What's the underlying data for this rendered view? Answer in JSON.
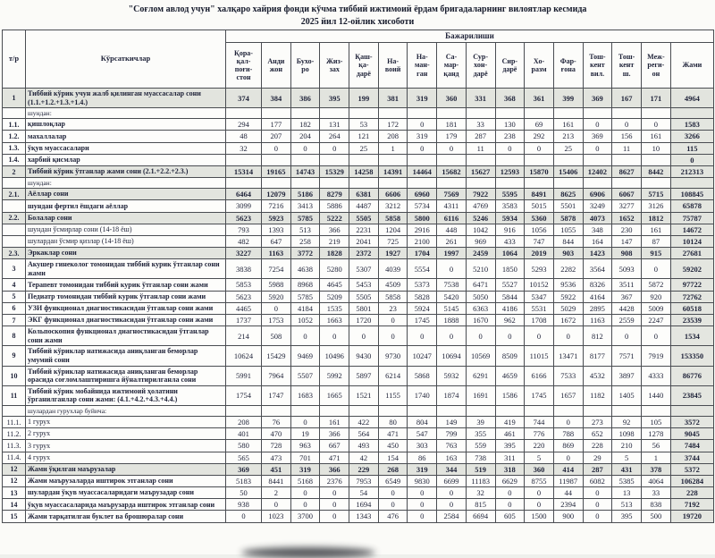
{
  "title": {
    "line1": "\"Соғлом авлод учун\" халқаро хайрия фонди кўчма тиббий ижтимоий ёрдам бригадаларнинг вилоятлар кесмида",
    "line2": "2025 йил 12-ойлик хисоботи"
  },
  "table": {
    "corner": {
      "num": "т/р",
      "indicators": "Кўрсаткичлар",
      "execution": "Бажарилиши"
    },
    "columns": [
      "Қора-\nқал-\nпоғи-\nстон",
      "Анди\nжон",
      "Бухо-\nро",
      "Жиз-\nзах",
      "Қаш-\nқа-\nдарё",
      "На-\nвоий",
      "На-\nман-\nган",
      "Са-\nмар-\nқанд",
      "Сур-\nхон-\nдарё",
      "Сир-\nдарё",
      "Хо-\nразм",
      "Фар-\nғона",
      "Тош-\nкент\nвил.",
      "Тош-\nкент\nш.",
      "Меж-\nреги-\nон",
      "Жами"
    ],
    "rows": [
      {
        "num": "1",
        "label": "Тиббий кўрик учун жалб қилинган муассасалар сони (1.1.+1.2.+1.3.+1.4.)",
        "style": "summary",
        "values": [
          "374",
          "384",
          "386",
          "395",
          "199",
          "381",
          "319",
          "360",
          "331",
          "368",
          "361",
          "399",
          "369",
          "167",
          "171",
          "4964"
        ]
      },
      {
        "num": "",
        "label": "шундан:",
        "style": "subheader",
        "values": [
          "",
          "",
          "",
          "",
          "",
          "",
          "",
          "",
          "",
          "",
          "",
          "",
          "",
          "",
          "",
          ""
        ]
      },
      {
        "num": "1.1.",
        "label": "қишлоқлар",
        "style": "row",
        "values": [
          "294",
          "177",
          "182",
          "131",
          "53",
          "172",
          "0",
          "181",
          "33",
          "130",
          "69",
          "161",
          "0",
          "0",
          "0",
          "1583"
        ]
      },
      {
        "num": "1.2.",
        "label": "махаллалар",
        "style": "row",
        "values": [
          "48",
          "207",
          "204",
          "264",
          "121",
          "208",
          "319",
          "179",
          "287",
          "238",
          "292",
          "213",
          "369",
          "156",
          "161",
          "3266"
        ]
      },
      {
        "num": "1.3.",
        "label": "ўқув муассасалари",
        "style": "row",
        "values": [
          "32",
          "0",
          "0",
          "0",
          "25",
          "1",
          "0",
          "0",
          "11",
          "0",
          "0",
          "25",
          "0",
          "11",
          "10",
          "115"
        ]
      },
      {
        "num": "1.4.",
        "label": "харбий қисмлар",
        "style": "row",
        "values": [
          "",
          "",
          "",
          "",
          "",
          "",
          "",
          "",
          "",
          "",
          "",
          "",
          "",
          "",
          "",
          "0"
        ]
      },
      {
        "num": "2",
        "label": "Тиббий кўрик ўтганлар жами сони  (2.1.+2.2.+2.3.)",
        "style": "summary",
        "values": [
          "15314",
          "19165",
          "14743",
          "15329",
          "14258",
          "14391",
          "14464",
          "15682",
          "15627",
          "12593",
          "15870",
          "15406",
          "12402",
          "8627",
          "8442",
          "212313"
        ]
      },
      {
        "num": "",
        "label": "шундан:",
        "style": "subheader",
        "values": [
          "",
          "",
          "",
          "",
          "",
          "",
          "",
          "",
          "",
          "",
          "",
          "",
          "",
          "",
          "",
          ""
        ]
      },
      {
        "num": "2.1.",
        "label": "Аёллар сони",
        "style": "summary",
        "values": [
          "6464",
          "12079",
          "5186",
          "8279",
          "6381",
          "6606",
          "6960",
          "7569",
          "7922",
          "5595",
          "8491",
          "8625",
          "6906",
          "6067",
          "5715",
          "108845"
        ]
      },
      {
        "num": "",
        "label": "шундан фертил ёшдаги аёллар",
        "style": "row",
        "values": [
          "3099",
          "7216",
          "3413",
          "5886",
          "4487",
          "3212",
          "5734",
          "4311",
          "4769",
          "3583",
          "5015",
          "5501",
          "3249",
          "3277",
          "3126",
          "65878"
        ]
      },
      {
        "num": "2.2.",
        "label": "Болалар сони",
        "style": "summary",
        "values": [
          "5623",
          "5923",
          "5785",
          "5222",
          "5505",
          "5858",
          "5800",
          "6116",
          "5246",
          "5934",
          "5360",
          "5878",
          "4073",
          "1652",
          "1812",
          "75787"
        ]
      },
      {
        "num": "",
        "label": "шундан ўсмирлар сони (14-18 ёш)",
        "style": "light",
        "values": [
          "793",
          "1393",
          "513",
          "366",
          "2231",
          "1204",
          "2916",
          "448",
          "1042",
          "916",
          "1056",
          "1055",
          "348",
          "230",
          "161",
          "14672"
        ]
      },
      {
        "num": "",
        "label": "шулардан ўсмир қизлар (14-18 ёш)",
        "style": "light",
        "values": [
          "482",
          "647",
          "258",
          "219",
          "2041",
          "725",
          "2100",
          "261",
          "969",
          "433",
          "747",
          "844",
          "164",
          "147",
          "87",
          "10124"
        ]
      },
      {
        "num": "2.3.",
        "label": "Эркаклар сони",
        "style": "summary",
        "values": [
          "3227",
          "1163",
          "3772",
          "1828",
          "2372",
          "1927",
          "1704",
          "1997",
          "2459",
          "1064",
          "2019",
          "903",
          "1423",
          "908",
          "915",
          "27681"
        ]
      },
      {
        "num": "3",
        "label": "Акушер гинеколог томонидан тиббий курик ўтганлар сони жами",
        "style": "row",
        "values": [
          "3838",
          "7254",
          "4638",
          "5280",
          "5307",
          "4039",
          "5554",
          "0",
          "5210",
          "1850",
          "5293",
          "2282",
          "3564",
          "5093",
          "0",
          "59202"
        ]
      },
      {
        "num": "4",
        "label": "Терапевт томонидан тиббий курик ўтганлар сони жами",
        "style": "row",
        "values": [
          "5853",
          "5988",
          "8968",
          "4645",
          "5453",
          "4509",
          "5373",
          "7538",
          "6471",
          "5527",
          "10152",
          "9536",
          "8326",
          "3511",
          "5872",
          "97722"
        ]
      },
      {
        "num": "5",
        "label": "Педиатр томонидан тиббий курик ўтганлар сони жами",
        "style": "row",
        "values": [
          "5623",
          "5920",
          "5785",
          "5209",
          "5505",
          "5858",
          "5828",
          "5420",
          "5050",
          "5844",
          "5347",
          "5922",
          "4164",
          "367",
          "920",
          "72762"
        ]
      },
      {
        "num": "6",
        "label": "УЗИ функционал диагностикасидан ўтганлар сони жами",
        "style": "row",
        "values": [
          "4465",
          "0",
          "4184",
          "1535",
          "5801",
          "23",
          "5924",
          "5145",
          "6363",
          "4186",
          "5531",
          "5029",
          "2895",
          "4428",
          "5009",
          "60518"
        ]
      },
      {
        "num": "7",
        "label": "ЭКГ функционал диагностикасидан ўтганлар сони жами",
        "style": "row",
        "values": [
          "1737",
          "1753",
          "1052",
          "1663",
          "1720",
          "0",
          "1745",
          "1888",
          "1670",
          "962",
          "1708",
          "1672",
          "1163",
          "2559",
          "2247",
          "23539"
        ]
      },
      {
        "num": "8",
        "label": "Кольпоскопия функционал диагностикасидан ўтганлар сони жами",
        "style": "row",
        "values": [
          "214",
          "508",
          "0",
          "0",
          "0",
          "0",
          "0",
          "0",
          "0",
          "0",
          "0",
          "0",
          "812",
          "0",
          "0",
          "1534"
        ]
      },
      {
        "num": "9",
        "label": "Тиббий кўриклар натижасида аниқланган беморлар умумий сони",
        "style": "row",
        "values": [
          "10624",
          "15429",
          "9469",
          "10496",
          "9430",
          "9730",
          "10247",
          "10694",
          "10569",
          "8509",
          "11015",
          "13471",
          "8177",
          "7571",
          "7919",
          "153350"
        ]
      },
      {
        "num": "10",
        "label": "Тиббий кўриклар натижасида аниқланган беморлар орасида соғломлаштиришга йўналтирилганла сони",
        "style": "row",
        "values": [
          "5991",
          "7964",
          "5507",
          "5992",
          "5897",
          "6214",
          "5868",
          "5932",
          "6291",
          "4659",
          "6166",
          "7533",
          "4532",
          "3897",
          "4333",
          "86776"
        ]
      },
      {
        "num": "11",
        "label": "Тиббий кўрик мобайнида ижтимоий ҳолатини ўрганилганлар сони жами: (4.1.+4.2.+4.3.+4.4.)",
        "style": "row",
        "values": [
          "1754",
          "1747",
          "1683",
          "1665",
          "1521",
          "1155",
          "1740",
          "1874",
          "1691",
          "1586",
          "1745",
          "1657",
          "1182",
          "1405",
          "1440",
          "23845"
        ]
      },
      {
        "num": "",
        "label": "шулардан гурухлар буйича:",
        "style": "subheader",
        "values": [
          "",
          "",
          "",
          "",
          "",
          "",
          "",
          "",
          "",
          "",
          "",
          "",
          "",
          "",
          "",
          ""
        ]
      },
      {
        "num": "11.1.",
        "label": "1 гурух",
        "style": "light",
        "values": [
          "208",
          "76",
          "0",
          "161",
          "422",
          "80",
          "804",
          "149",
          "39",
          "419",
          "744",
          "0",
          "273",
          "92",
          "105",
          "3572"
        ]
      },
      {
        "num": "11.2.",
        "label": "2 гурух",
        "style": "light",
        "values": [
          "401",
          "470",
          "19",
          "366",
          "564",
          "471",
          "547",
          "799",
          "355",
          "461",
          "776",
          "788",
          "652",
          "1098",
          "1278",
          "9045"
        ]
      },
      {
        "num": "11.3.",
        "label": "3 гурух",
        "style": "light",
        "values": [
          "580",
          "728",
          "963",
          "667",
          "493",
          "450",
          "303",
          "763",
          "559",
          "395",
          "220",
          "869",
          "228",
          "210",
          "56",
          "7484"
        ]
      },
      {
        "num": "11.4.",
        "label": "4 гурух",
        "style": "light",
        "values": [
          "565",
          "473",
          "701",
          "471",
          "42",
          "154",
          "86",
          "163",
          "738",
          "311",
          "5",
          "0",
          "29",
          "5",
          "1",
          "3744"
        ]
      },
      {
        "num": "12",
        "label": "Жами ўқилган маърузалар",
        "style": "summary",
        "values": [
          "369",
          "451",
          "319",
          "366",
          "229",
          "268",
          "319",
          "344",
          "519",
          "318",
          "360",
          "414",
          "287",
          "431",
          "378",
          "5372"
        ]
      },
      {
        "num": "12",
        "label": "Жами маърузаларда иштирок этганлар сони",
        "style": "row",
        "values": [
          "5183",
          "8441",
          "5168",
          "2376",
          "7953",
          "6549",
          "9830",
          "6699",
          "11183",
          "6629",
          "8755",
          "11987",
          "6082",
          "5385",
          "4064",
          "106284"
        ]
      },
      {
        "num": "13",
        "label": "шулардан ўқув муассасаларидаги маърузадар  сони",
        "style": "row",
        "values": [
          "50",
          "2",
          "0",
          "0",
          "54",
          "0",
          "0",
          "0",
          "32",
          "0",
          "0",
          "44",
          "0",
          "13",
          "33",
          "228"
        ]
      },
      {
        "num": "14",
        "label": "ўқув муассасаларида маърузарда иштирок этганлар сони",
        "style": "row",
        "values": [
          "938",
          "0",
          "0",
          "0",
          "1694",
          "0",
          "0",
          "0",
          "815",
          "0",
          "0",
          "2394",
          "0",
          "513",
          "838",
          "7192"
        ]
      },
      {
        "num": "15",
        "label": "Жами тарқатилган буклет ва брошюралар сони",
        "style": "row",
        "values": [
          "0",
          "1023",
          "3700",
          "0",
          "1343",
          "476",
          "0",
          "2584",
          "6694",
          "605",
          "1500",
          "900",
          "0",
          "395",
          "500",
          "19720"
        ]
      }
    ]
  }
}
